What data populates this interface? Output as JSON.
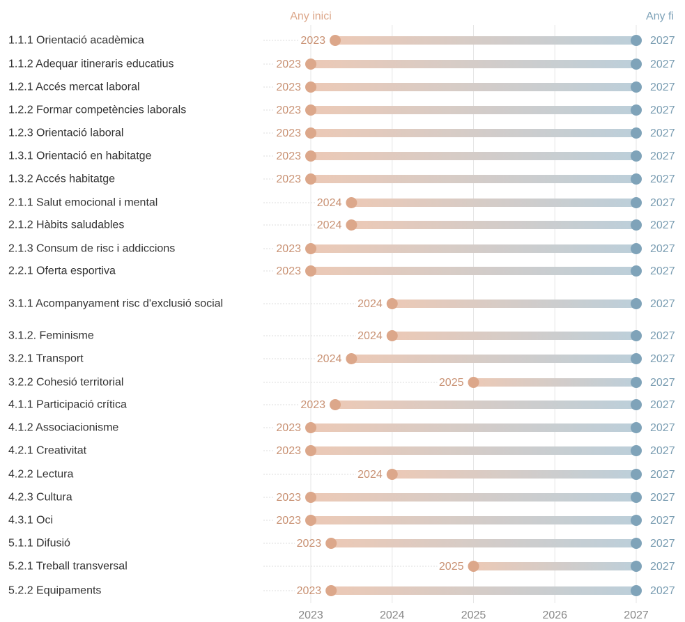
{
  "chart_data": {
    "type": "dumbbell",
    "categories": [
      "1.1.1 Orientació acadèmica",
      "1.1.2 Adequar itineraris educatius",
      "1.2.1 Accés mercat laboral",
      "1.2.2 Formar competències laborals",
      "1.2.3 Orientació laboral",
      "1.3.1 Orientació en habitatge",
      "1.3.2 Accés habitatge",
      "2.1.1 Salut emocional i mental",
      "2.1.2 Hàbits saludables",
      "2.1.3 Consum de risc i addiccions",
      "2.2.1 Oferta esportiva",
      "3.1.1 Acompanyament risc d'exclusió social",
      "3.1.2. Feminisme",
      "3.2.1 Transport",
      "3.2.2 Cohesió territorial",
      "4.1.1 Participació crítica",
      "4.1.2 Associacionisme",
      "4.2.1 Creativitat",
      "4.2.2 Lectura",
      "4.2.3 Cultura",
      "4.3.1 Oci",
      "5.1.1 Difusió",
      "5.2.1 Treball transversal",
      "5.2.2 Equipaments"
    ],
    "series": [
      {
        "name": "Any inici",
        "color": "#dca78a",
        "values": [
          2023.3,
          2023,
          2023,
          2023,
          2023,
          2023,
          2023,
          2023.5,
          2023.5,
          2023,
          2023,
          2024,
          2024,
          2023.5,
          2025,
          2023.3,
          2023,
          2023,
          2024,
          2023,
          2023,
          2023.25,
          2025,
          2023.25
        ],
        "value_labels": [
          "2023",
          "2023",
          "2023",
          "2023",
          "2023",
          "2023",
          "2023",
          "2024",
          "2024",
          "2023",
          "2023",
          "2024",
          "2024",
          "2024",
          "2025",
          "2023",
          "2023",
          "2023",
          "2024",
          "2023",
          "2023",
          "2023",
          "2025",
          "2023"
        ]
      },
      {
        "name": "Any fi",
        "color": "#7fa3b9",
        "values": [
          2027,
          2027,
          2027,
          2027,
          2027,
          2027,
          2027,
          2027,
          2027,
          2027,
          2027,
          2027,
          2027,
          2027,
          2027,
          2027,
          2027,
          2027,
          2027,
          2027,
          2027,
          2027,
          2027,
          2027
        ]
      }
    ],
    "xlim": [
      2023,
      2027
    ],
    "xticks": [
      2023,
      2024,
      2025,
      2026,
      2027
    ],
    "grid": true
  }
}
